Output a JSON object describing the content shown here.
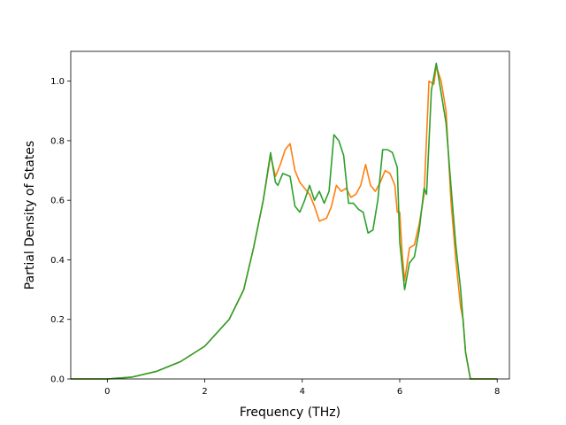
{
  "chart_data": {
    "type": "line",
    "title": "",
    "xlabel": "Frequency (THz)",
    "ylabel": "Partial Density of States",
    "xlim": [
      -0.75,
      8.25
    ],
    "ylim": [
      0.0,
      1.1
    ],
    "xticks": [
      0,
      2,
      4,
      6,
      8
    ],
    "yticks": [
      0.0,
      0.2,
      0.4,
      0.6,
      0.8,
      1.0
    ],
    "grid": false,
    "legend": "none",
    "series": [
      {
        "color": "#ff7f0e",
        "points": [
          [
            -0.75,
            0.0
          ],
          [
            0.0,
            0.0
          ],
          [
            0.5,
            0.006
          ],
          [
            1.0,
            0.025
          ],
          [
            1.5,
            0.058
          ],
          [
            2.0,
            0.11
          ],
          [
            2.5,
            0.2
          ],
          [
            2.8,
            0.3
          ],
          [
            3.0,
            0.44
          ],
          [
            3.2,
            0.6
          ],
          [
            3.35,
            0.75
          ],
          [
            3.45,
            0.68
          ],
          [
            3.55,
            0.72
          ],
          [
            3.65,
            0.77
          ],
          [
            3.75,
            0.79
          ],
          [
            3.85,
            0.7
          ],
          [
            3.95,
            0.66
          ],
          [
            4.05,
            0.64
          ],
          [
            4.15,
            0.62
          ],
          [
            4.25,
            0.58
          ],
          [
            4.35,
            0.53
          ],
          [
            4.5,
            0.54
          ],
          [
            4.6,
            0.58
          ],
          [
            4.7,
            0.65
          ],
          [
            4.8,
            0.63
          ],
          [
            4.9,
            0.64
          ],
          [
            5.0,
            0.61
          ],
          [
            5.1,
            0.62
          ],
          [
            5.2,
            0.65
          ],
          [
            5.3,
            0.72
          ],
          [
            5.4,
            0.65
          ],
          [
            5.5,
            0.63
          ],
          [
            5.6,
            0.66
          ],
          [
            5.7,
            0.7
          ],
          [
            5.8,
            0.69
          ],
          [
            5.9,
            0.65
          ],
          [
            5.95,
            0.56
          ],
          [
            6.0,
            0.56
          ],
          [
            6.05,
            0.42
          ],
          [
            6.1,
            0.33
          ],
          [
            6.2,
            0.44
          ],
          [
            6.3,
            0.45
          ],
          [
            6.4,
            0.52
          ],
          [
            6.5,
            0.62
          ],
          [
            6.6,
            1.0
          ],
          [
            6.7,
            0.99
          ],
          [
            6.75,
            1.05
          ],
          [
            6.85,
            1.0
          ],
          [
            6.95,
            0.9
          ],
          [
            7.05,
            0.6
          ],
          [
            7.15,
            0.4
          ],
          [
            7.25,
            0.24
          ],
          [
            7.3,
            0.2
          ],
          [
            7.35,
            0.09
          ],
          [
            7.45,
            0.0
          ],
          [
            8.0,
            0.0
          ]
        ]
      },
      {
        "color": "#2ca02c",
        "points": [
          [
            -0.75,
            0.0
          ],
          [
            0.0,
            0.0
          ],
          [
            0.5,
            0.006
          ],
          [
            1.0,
            0.025
          ],
          [
            1.5,
            0.058
          ],
          [
            2.0,
            0.11
          ],
          [
            2.5,
            0.2
          ],
          [
            2.8,
            0.3
          ],
          [
            3.0,
            0.44
          ],
          [
            3.2,
            0.6
          ],
          [
            3.35,
            0.76
          ],
          [
            3.45,
            0.66
          ],
          [
            3.5,
            0.65
          ],
          [
            3.6,
            0.69
          ],
          [
            3.75,
            0.68
          ],
          [
            3.85,
            0.58
          ],
          [
            3.95,
            0.56
          ],
          [
            4.05,
            0.6
          ],
          [
            4.15,
            0.65
          ],
          [
            4.25,
            0.6
          ],
          [
            4.35,
            0.63
          ],
          [
            4.45,
            0.59
          ],
          [
            4.55,
            0.63
          ],
          [
            4.65,
            0.82
          ],
          [
            4.75,
            0.8
          ],
          [
            4.85,
            0.75
          ],
          [
            4.95,
            0.59
          ],
          [
            5.05,
            0.59
          ],
          [
            5.15,
            0.57
          ],
          [
            5.25,
            0.56
          ],
          [
            5.35,
            0.49
          ],
          [
            5.45,
            0.5
          ],
          [
            5.55,
            0.6
          ],
          [
            5.65,
            0.77
          ],
          [
            5.75,
            0.77
          ],
          [
            5.85,
            0.76
          ],
          [
            5.95,
            0.71
          ],
          [
            6.0,
            0.46
          ],
          [
            6.1,
            0.3
          ],
          [
            6.2,
            0.39
          ],
          [
            6.3,
            0.41
          ],
          [
            6.4,
            0.5
          ],
          [
            6.5,
            0.64
          ],
          [
            6.55,
            0.62
          ],
          [
            6.65,
            0.97
          ],
          [
            6.75,
            1.06
          ],
          [
            6.85,
            0.96
          ],
          [
            6.95,
            0.86
          ],
          [
            7.05,
            0.65
          ],
          [
            7.15,
            0.45
          ],
          [
            7.25,
            0.3
          ],
          [
            7.35,
            0.09
          ],
          [
            7.45,
            0.0
          ],
          [
            8.0,
            0.0
          ]
        ]
      }
    ]
  }
}
